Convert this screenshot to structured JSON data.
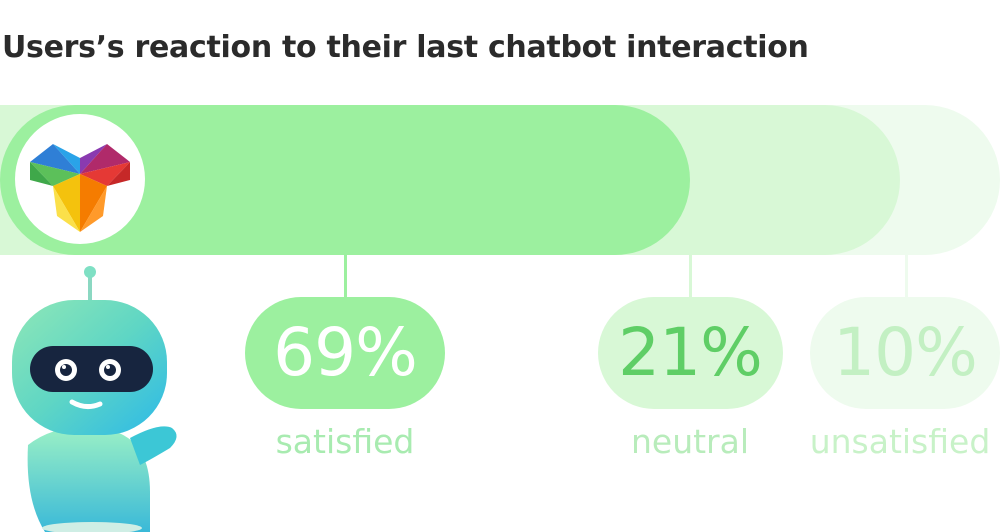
{
  "chart_data": {
    "type": "bar",
    "title": "Users’s reaction to their last chatbot interaction",
    "categories": [
      "satisfied",
      "neutral",
      "unsatisfied"
    ],
    "values": [
      69,
      21,
      10
    ],
    "value_labels": [
      "69%",
      "21%",
      "10%"
    ],
    "colors": {
      "satisfied_bar": "#9cf09f",
      "neutral_bar": "#d8f8d6",
      "unsatisfied_bar": "#eefbee",
      "satisfied_text": "#ffffff",
      "neutral_text": "#5fce66",
      "unsatisfied_text": "#c3f0c3"
    }
  },
  "icons": {
    "logo": "prism-logo-icon",
    "mascot": "chatbot-robot-mascot"
  }
}
